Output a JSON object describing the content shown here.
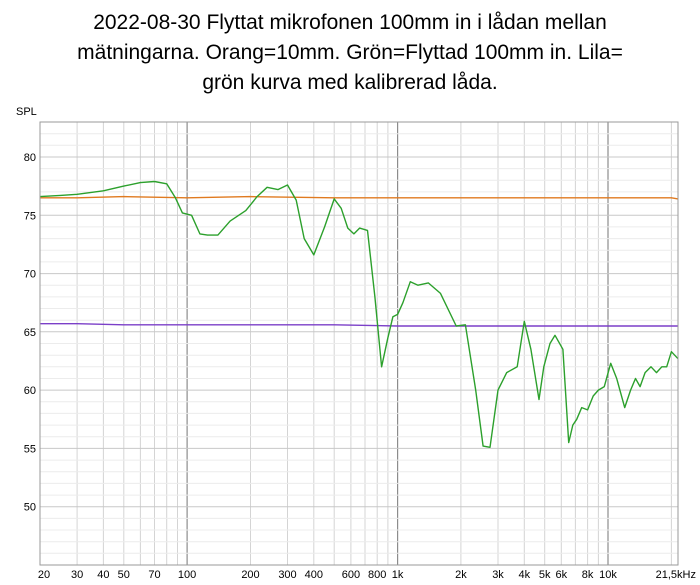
{
  "chart_data": {
    "type": "line",
    "title_lines": [
      "2022-08-30 Flyttat mikrofonen 100mm in i lådan mellan",
      "mätningarna. Orang=10mm. Grön=Flyttad 100mm in. Lila=",
      "grön kurva med kalibrerad låda."
    ],
    "ylabel": "SPL",
    "xscale": "log",
    "xlim": [
      20,
      21500
    ],
    "ylim": [
      45,
      83
    ],
    "grid": true,
    "yticks": [
      80,
      75,
      70,
      65,
      60,
      55,
      50
    ],
    "xticks": [
      {
        "v": 20,
        "label": "20"
      },
      {
        "v": 30,
        "label": "30"
      },
      {
        "v": 40,
        "label": "40"
      },
      {
        "v": 50,
        "label": "50"
      },
      {
        "v": 70,
        "label": "70"
      },
      {
        "v": 100,
        "label": "100"
      },
      {
        "v": 200,
        "label": "200"
      },
      {
        "v": 300,
        "label": "300"
      },
      {
        "v": 400,
        "label": "400"
      },
      {
        "v": 600,
        "label": "600"
      },
      {
        "v": 800,
        "label": "800"
      },
      {
        "v": 1000,
        "label": "1k"
      },
      {
        "v": 2000,
        "label": "2k"
      },
      {
        "v": 3000,
        "label": "3k"
      },
      {
        "v": 4000,
        "label": "4k"
      },
      {
        "v": 5000,
        "label": "5k"
      },
      {
        "v": 6000,
        "label": "6k"
      },
      {
        "v": 8000,
        "label": "8k"
      },
      {
        "v": 10000,
        "label": "10k"
      },
      {
        "v": 21500,
        "label": "21,5kHz"
      }
    ],
    "series": [
      {
        "color": "#e07a1f",
        "x": [
          20,
          30,
          50,
          100,
          200,
          500,
          1000,
          2000,
          5000,
          10000,
          20000,
          21500
        ],
        "y": [
          76.5,
          76.5,
          76.6,
          76.5,
          76.6,
          76.5,
          76.5,
          76.5,
          76.5,
          76.5,
          76.5,
          76.4
        ]
      },
      {
        "color": "#7b3fc8",
        "x": [
          20,
          30,
          50,
          100,
          200,
          500,
          1000,
          2000,
          5000,
          10000,
          20000,
          21500
        ],
        "y": [
          65.7,
          65.7,
          65.6,
          65.6,
          65.6,
          65.6,
          65.5,
          65.5,
          65.5,
          65.5,
          65.5,
          65.5
        ]
      },
      {
        "color": "#2ca02c",
        "x": [
          20,
          25,
          30,
          40,
          50,
          60,
          70,
          80,
          88,
          95,
          105,
          115,
          125,
          140,
          160,
          190,
          215,
          240,
          270,
          300,
          330,
          360,
          400,
          450,
          500,
          540,
          580,
          620,
          660,
          720,
          780,
          840,
          900,
          950,
          1000,
          1060,
          1150,
          1250,
          1400,
          1600,
          1900,
          2100,
          2350,
          2550,
          2750,
          3000,
          3300,
          3700,
          4000,
          4300,
          4700,
          4950,
          5300,
          5600,
          6100,
          6500,
          6800,
          7100,
          7500,
          8000,
          8500,
          9000,
          9600,
          10300,
          11000,
          12000,
          12800,
          13500,
          14200,
          15000,
          16000,
          17000,
          18000,
          19000,
          20000,
          21500
        ],
        "y": [
          76.6,
          76.7,
          76.8,
          77.1,
          77.5,
          77.8,
          77.9,
          77.7,
          76.5,
          75.2,
          75.0,
          73.4,
          73.3,
          73.3,
          74.5,
          75.4,
          76.6,
          77.4,
          77.2,
          77.6,
          76.3,
          73.0,
          71.6,
          74.0,
          76.4,
          75.6,
          73.9,
          73.4,
          73.9,
          73.7,
          68.0,
          62.0,
          64.5,
          66.3,
          66.5,
          67.5,
          69.3,
          69.0,
          69.2,
          68.3,
          65.5,
          65.6,
          60.0,
          55.2,
          55.1,
          60.0,
          61.5,
          62.0,
          65.9,
          63.5,
          59.2,
          62.0,
          64.0,
          64.7,
          63.5,
          55.5,
          57.0,
          57.5,
          58.5,
          58.3,
          59.5,
          60.0,
          60.3,
          62.3,
          61.0,
          58.5,
          60.0,
          61.0,
          60.3,
          61.5,
          62.0,
          61.5,
          62.0,
          62.0,
          63.3,
          62.7
        ]
      }
    ]
  }
}
